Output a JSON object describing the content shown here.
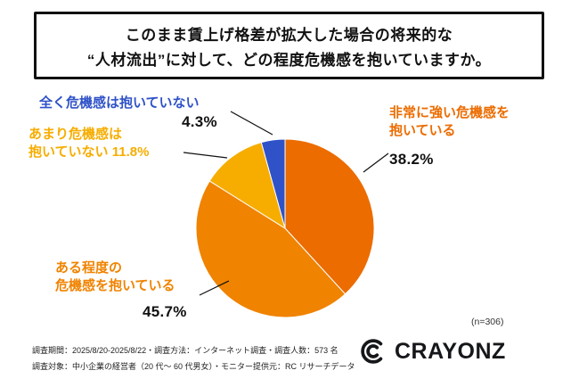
{
  "title": {
    "line1": "このまま賃上げ格差が拡大した場合の将来的な",
    "line2": "“人材流出”に対して、どの程度危機感を抱いていますか。"
  },
  "chart_data": {
    "type": "pie",
    "title": "このまま賃上げ格差が拡大した場合の将来的な“人材流出”に対して、どの程度危機感を抱いていますか。",
    "start_angle_deg": 0,
    "direction": "clockwise",
    "n_label": "(n=306)",
    "slices": [
      {
        "label": "非常に強い危機感を抱いている",
        "value": 38.2,
        "pct_label": "38.2%",
        "color": "#EC6C00"
      },
      {
        "label": "ある程度の危機感を抱いている",
        "value": 45.7,
        "pct_label": "45.7%",
        "color": "#F08300"
      },
      {
        "label": "あまり危機感は抱いていない",
        "value": 11.8,
        "pct_label": "11.8%",
        "color": "#F6AD00"
      },
      {
        "label": "全く危機感は抱いていない",
        "value": 4.3,
        "pct_label": "4.3%",
        "color": "#2F52C8"
      }
    ]
  },
  "callouts": {
    "none": {
      "line1": "全く危機感は抱いていない",
      "pct": "4.3%"
    },
    "little": {
      "line1": "あまり危機感は",
      "line2": "抱いていない 11.8%"
    },
    "strong": {
      "line1": "非常に強い危機感を",
      "line2": "抱いている",
      "pct": "38.2%"
    },
    "some": {
      "line1": "ある程度の",
      "line2": "危機感を抱いている",
      "pct": "45.7%"
    }
  },
  "footnote": {
    "line1": "調査期間：2025/8/20-2025/8/22・調査方法：インターネット調査・調査人数：573 名",
    "line2": "調査対象：中小企業の経営者（20 代〜 60 代男女）・モニター提供元：RC リサーチデータ"
  },
  "brand": {
    "name": "CRAYONZ"
  }
}
